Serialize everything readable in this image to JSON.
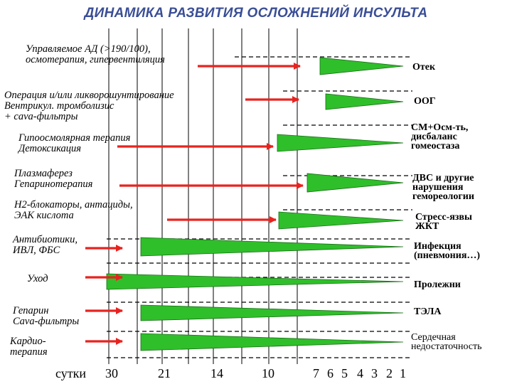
{
  "title": "ДИНАМИКА РАЗВИТИЯ ОСЛОЖНЕНИЙ ИНСУЛЬТА",
  "colors": {
    "title": "#3a4e96",
    "arrow": "#e8231f",
    "wedge": "#2fbf2a",
    "text": "#000000"
  },
  "therapies": [
    {
      "text": "Управляемое АД (>190/100),\nосмотерапия, гипервентиляция"
    },
    {
      "text": "Операция и/или ликворошунтирование\nВентрикул. тромболизис\n+ cava-фильтры"
    },
    {
      "text": "Гипоосмолярная терапия\nДетоксикация"
    },
    {
      "text": "Плазмаферез\nГепаринотерапия"
    },
    {
      "text": "Н2-блокаторы, антациды,\nЭАК кислота"
    },
    {
      "text": "Антибиотики,\nИВЛ, ФБС"
    },
    {
      "text": "Уход"
    },
    {
      "text": "Гепарин\nCava-фильтры"
    },
    {
      "text": "Кардио-\nтерапия"
    }
  ],
  "complications": [
    {
      "text": "Отек"
    },
    {
      "text": "ООГ"
    },
    {
      "text": "СМ+Осм-ть,\nдисбаланс\nгомеостаза"
    },
    {
      "text": "ДВС и другие\nнарушения\nгемореологии"
    },
    {
      "text": "Стресс-язвы\nЖКТ"
    },
    {
      "text": "Инфекция\n(пневмония…)"
    },
    {
      "text": "Пролежни"
    },
    {
      "text": "ТЭЛА"
    },
    {
      "text": "Сердечная\nнедостаточность"
    }
  ],
  "axis": {
    "label": "сутки",
    "ticks": [
      "30",
      "21",
      "14",
      "10",
      "7",
      "6",
      "5",
      "4",
      "3",
      "2",
      "1"
    ]
  }
}
